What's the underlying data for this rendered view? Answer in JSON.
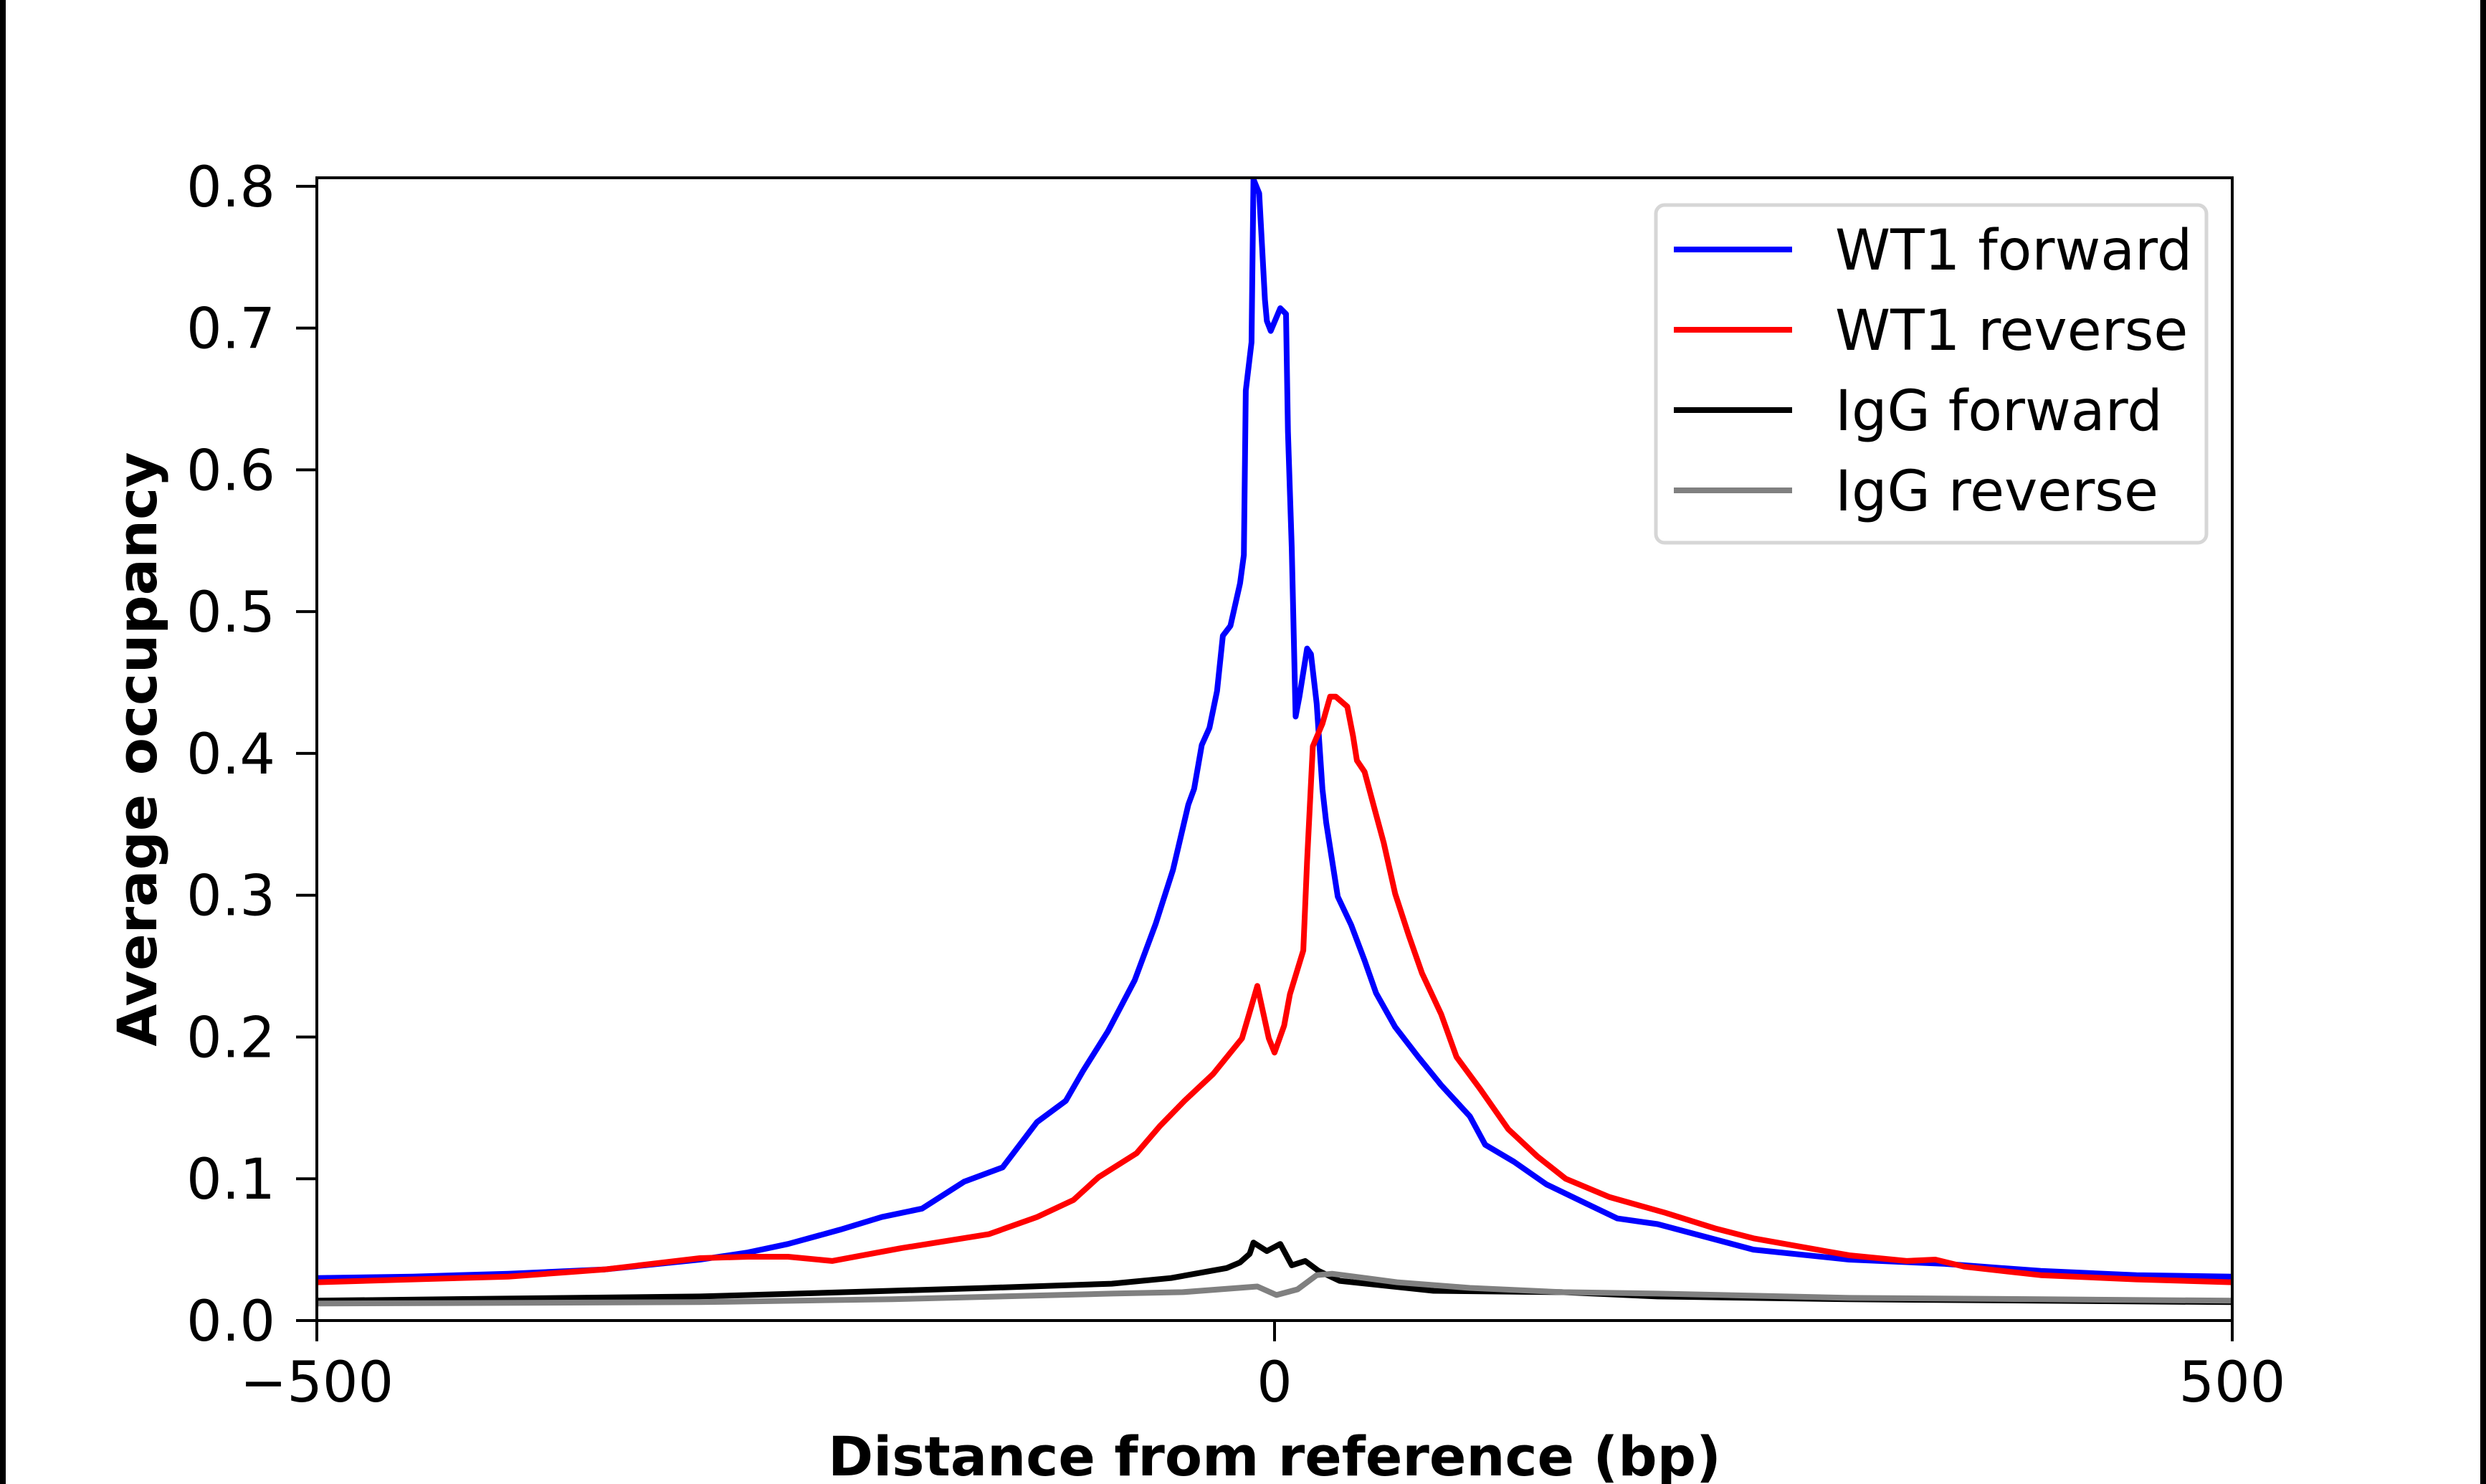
{
  "chart_data": {
    "type": "line",
    "title": "",
    "xlabel": "Distance from reference (bp)",
    "ylabel": "Average occupancy",
    "xlim": [
      -500,
      500
    ],
    "ylim": [
      0,
      0.806
    ],
    "xticks": [
      -500,
      0,
      500
    ],
    "xtick_labels": [
      "−500",
      "0",
      "500"
    ],
    "yticks": [
      0.0,
      0.1,
      0.2,
      0.3,
      0.4,
      0.5,
      0.6,
      0.7,
      0.8
    ],
    "ytick_labels": [
      "0.0",
      "0.1",
      "0.2",
      "0.3",
      "0.4",
      "0.5",
      "0.6",
      "0.7",
      "0.8"
    ],
    "grid": false,
    "legend_position": "top-right",
    "series": [
      {
        "name": "WT1 forward",
        "color": "#0000ff",
        "x": [
          -500,
          -450,
          -400,
          -350,
          -300,
          -275,
          -254,
          -227,
          -205,
          -184,
          -162,
          -142,
          -124,
          -109,
          -100,
          -87,
          -73,
          -62,
          -53,
          -45,
          -42,
          -38,
          -34,
          -30,
          -27,
          -23,
          -18,
          -16,
          -15,
          -12,
          -11,
          -8,
          -5,
          -4,
          -2,
          3,
          6,
          7,
          9,
          11,
          13,
          17,
          19,
          22,
          25,
          27,
          33,
          40,
          47,
          53,
          63,
          75,
          87,
          102,
          110,
          125,
          142,
          162,
          179,
          200,
          250,
          300,
          350,
          400,
          450,
          500
        ],
        "y": [
          0.03,
          0.031,
          0.033,
          0.036,
          0.043,
          0.048,
          0.054,
          0.064,
          0.073,
          0.079,
          0.098,
          0.108,
          0.14,
          0.155,
          0.176,
          0.204,
          0.24,
          0.28,
          0.318,
          0.364,
          0.375,
          0.406,
          0.418,
          0.444,
          0.483,
          0.49,
          0.52,
          0.54,
          0.656,
          0.69,
          0.805,
          0.795,
          0.72,
          0.705,
          0.698,
          0.714,
          0.71,
          0.627,
          0.545,
          0.426,
          0.44,
          0.474,
          0.47,
          0.435,
          0.375,
          0.351,
          0.299,
          0.279,
          0.254,
          0.231,
          0.207,
          0.186,
          0.166,
          0.144,
          0.124,
          0.112,
          0.096,
          0.083,
          0.072,
          0.068,
          0.05,
          0.043,
          0.04,
          0.035,
          0.032,
          0.031
        ]
      },
      {
        "name": "WT1 reverse",
        "color": "#ff0000",
        "x": [
          -500,
          -450,
          -400,
          -350,
          -300,
          -275,
          -254,
          -231,
          -195,
          -149,
          -124,
          -105,
          -92,
          -72,
          -60,
          -47,
          -32,
          -17,
          -9,
          -3,
          0,
          5,
          8,
          15,
          17,
          20,
          25,
          29,
          32,
          38,
          41,
          43,
          47,
          52,
          57,
          63,
          70,
          77,
          87,
          95,
          107,
          122,
          137,
          152,
          175,
          204,
          230,
          250,
          275,
          300,
          330,
          345,
          360,
          380,
          400,
          450,
          500
        ],
        "y": [
          0.027,
          0.029,
          0.031,
          0.036,
          0.044,
          0.045,
          0.045,
          0.042,
          0.051,
          0.061,
          0.073,
          0.085,
          0.101,
          0.118,
          0.137,
          0.155,
          0.174,
          0.199,
          0.236,
          0.199,
          0.189,
          0.208,
          0.23,
          0.261,
          0.324,
          0.405,
          0.421,
          0.44,
          0.44,
          0.433,
          0.412,
          0.395,
          0.387,
          0.362,
          0.337,
          0.301,
          0.272,
          0.245,
          0.216,
          0.186,
          0.164,
          0.135,
          0.116,
          0.1,
          0.087,
          0.076,
          0.065,
          0.058,
          0.052,
          0.046,
          0.042,
          0.043,
          0.038,
          0.035,
          0.032,
          0.029,
          0.027
        ]
      },
      {
        "name": "IgG forward",
        "color": "#000000",
        "x": [
          -500,
          -300,
          -200,
          -150,
          -85,
          -54,
          -25,
          -18,
          -13,
          -11,
          -4,
          3,
          9,
          16,
          23,
          34,
          83,
          150,
          200,
          300,
          500
        ],
        "y": [
          0.014,
          0.017,
          0.021,
          0.023,
          0.026,
          0.03,
          0.037,
          0.041,
          0.047,
          0.055,
          0.049,
          0.054,
          0.039,
          0.042,
          0.035,
          0.028,
          0.021,
          0.02,
          0.017,
          0.015,
          0.013
        ]
      },
      {
        "name": "IgG reverse",
        "color": "#808080",
        "x": [
          -500,
          -300,
          -200,
          -85,
          -48,
          -9,
          1,
          12,
          22,
          30,
          64,
          102,
          150,
          200,
          300,
          400,
          500
        ],
        "y": [
          0.012,
          0.013,
          0.015,
          0.019,
          0.02,
          0.024,
          0.018,
          0.022,
          0.032,
          0.033,
          0.027,
          0.023,
          0.02,
          0.019,
          0.016,
          0.015,
          0.014
        ]
      }
    ]
  }
}
